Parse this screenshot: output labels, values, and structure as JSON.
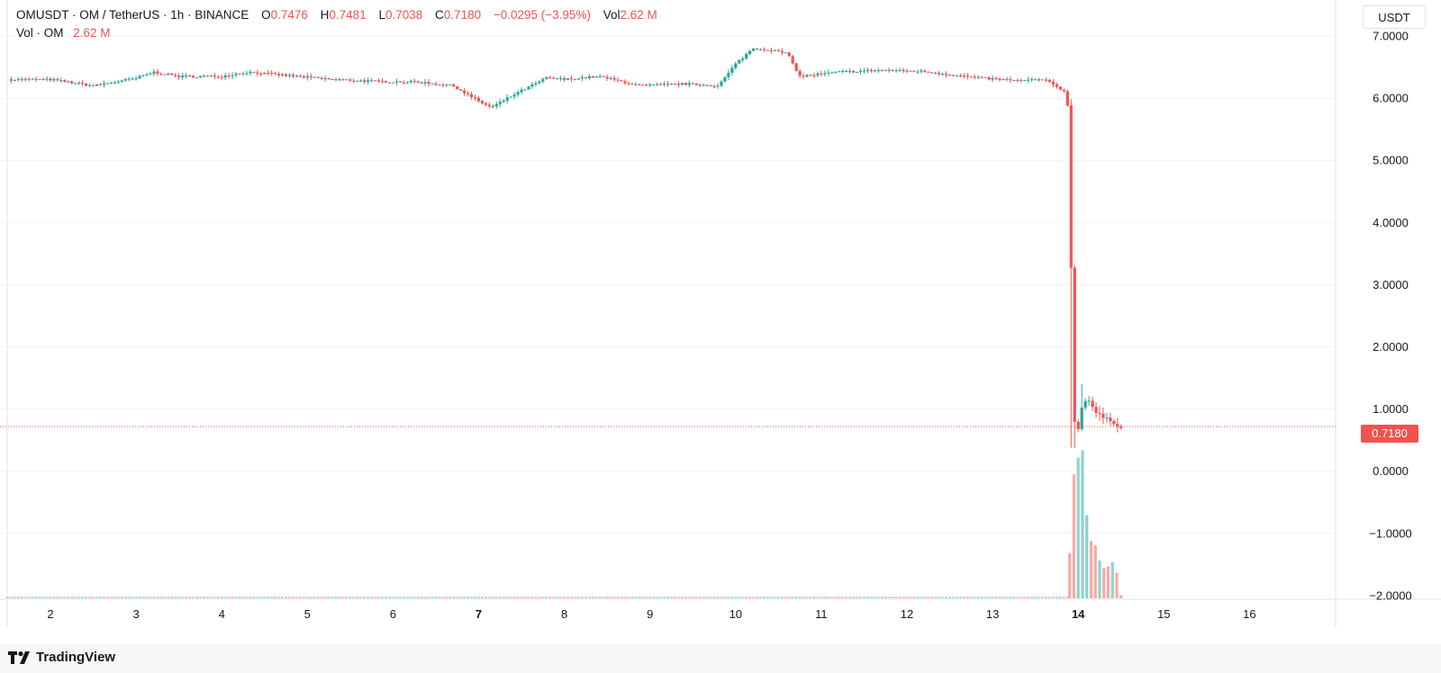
{
  "legend": {
    "symbol": "OMUSDT · OM / TetherUS · 1h · BINANCE",
    "o_label": "O",
    "o_value": "0.7476",
    "h_label": "H",
    "h_value": "0.7481",
    "l_label": "L",
    "l_value": "0.7038",
    "c_label": "C",
    "c_value": "0.7180",
    "change": "−0.0295 (−3.95%)",
    "vol_label": "Vol",
    "vol_value": "2.62 M",
    "vol_line_label": "Vol · OM",
    "vol_line_value": "2.62 M"
  },
  "axis_unit": "USDT",
  "last_price_label": "0.7180",
  "brand": "TradingView",
  "colors": {
    "up": "#26a69a",
    "down": "#ef5350",
    "vol_up": "#8fd3cb",
    "vol_down": "#f7a9a7",
    "grid": "#f0f3fa"
  },
  "chart_data": {
    "type": "candlestick",
    "symbol": "OMUSDT",
    "interval": "1h",
    "y_axis": {
      "ticks": [
        "7.0000",
        "6.0000",
        "5.0000",
        "4.0000",
        "3.0000",
        "2.0000",
        "1.0000",
        "0.0000",
        "−1.0000",
        "−2.0000"
      ],
      "tick_values": [
        7,
        6,
        5,
        4,
        3,
        2,
        1,
        0,
        -1,
        -2
      ],
      "range": [
        -2.2,
        7.5
      ]
    },
    "x_axis": {
      "ticks": [
        "2",
        "3",
        "4",
        "5",
        "6",
        "7",
        "8",
        "9",
        "10",
        "11",
        "12",
        "13",
        "14",
        "15",
        "16"
      ],
      "tick_days": [
        2,
        3,
        4,
        5,
        6,
        7,
        8,
        9,
        10,
        11,
        12,
        13,
        14,
        15,
        16
      ],
      "bold": [
        "7",
        "14"
      ],
      "range_days": [
        1.5,
        17
      ]
    },
    "price_path": [
      [
        1.5,
        6.3
      ],
      [
        2.0,
        6.3
      ],
      [
        2.5,
        6.2
      ],
      [
        3.0,
        6.32
      ],
      [
        3.2,
        6.42
      ],
      [
        3.5,
        6.35
      ],
      [
        4.0,
        6.35
      ],
      [
        4.3,
        6.42
      ],
      [
        4.8,
        6.36
      ],
      [
        5.3,
        6.3
      ],
      [
        5.8,
        6.27
      ],
      [
        6.3,
        6.26
      ],
      [
        6.7,
        6.2
      ],
      [
        7.0,
        5.95
      ],
      [
        7.15,
        5.85
      ],
      [
        7.4,
        6.05
      ],
      [
        7.8,
        6.33
      ],
      [
        8.0,
        6.3
      ],
      [
        8.4,
        6.35
      ],
      [
        8.9,
        6.2
      ],
      [
        9.4,
        6.23
      ],
      [
        9.8,
        6.2
      ],
      [
        10.0,
        6.55
      ],
      [
        10.2,
        6.8
      ],
      [
        10.4,
        6.78
      ],
      [
        10.6,
        6.72
      ],
      [
        10.75,
        6.35
      ],
      [
        11.2,
        6.42
      ],
      [
        11.7,
        6.45
      ],
      [
        12.2,
        6.43
      ],
      [
        12.8,
        6.33
      ],
      [
        13.3,
        6.28
      ],
      [
        13.6,
        6.3
      ],
      [
        13.85,
        6.1
      ],
      [
        13.9,
        5.7
      ],
      [
        13.93,
        1.3
      ],
      [
        13.98,
        0.45
      ],
      [
        14.03,
        1.0
      ],
      [
        14.1,
        1.2
      ],
      [
        14.2,
        0.95
      ],
      [
        14.3,
        0.85
      ],
      [
        14.4,
        0.8
      ],
      [
        14.5,
        0.718
      ]
    ],
    "last_price": 0.718,
    "volume_spikes": [
      {
        "day": 13.9,
        "rel": 0.3,
        "dir": "down"
      },
      {
        "day": 13.95,
        "rel": 0.82,
        "dir": "down"
      },
      {
        "day": 14.0,
        "rel": 0.93,
        "dir": "up"
      },
      {
        "day": 14.05,
        "rel": 0.98,
        "dir": "up"
      },
      {
        "day": 14.1,
        "rel": 0.55,
        "dir": "up"
      },
      {
        "day": 14.15,
        "rel": 0.38,
        "dir": "down"
      },
      {
        "day": 14.2,
        "rel": 0.35,
        "dir": "down"
      },
      {
        "day": 14.25,
        "rel": 0.25,
        "dir": "up"
      },
      {
        "day": 14.3,
        "rel": 0.2,
        "dir": "down"
      },
      {
        "day": 14.35,
        "rel": 0.21,
        "dir": "down"
      },
      {
        "day": 14.4,
        "rel": 0.24,
        "dir": "up"
      },
      {
        "day": 14.45,
        "rel": 0.17,
        "dir": "down"
      },
      {
        "day": 14.5,
        "rel": 0.02,
        "dir": "down"
      }
    ]
  }
}
